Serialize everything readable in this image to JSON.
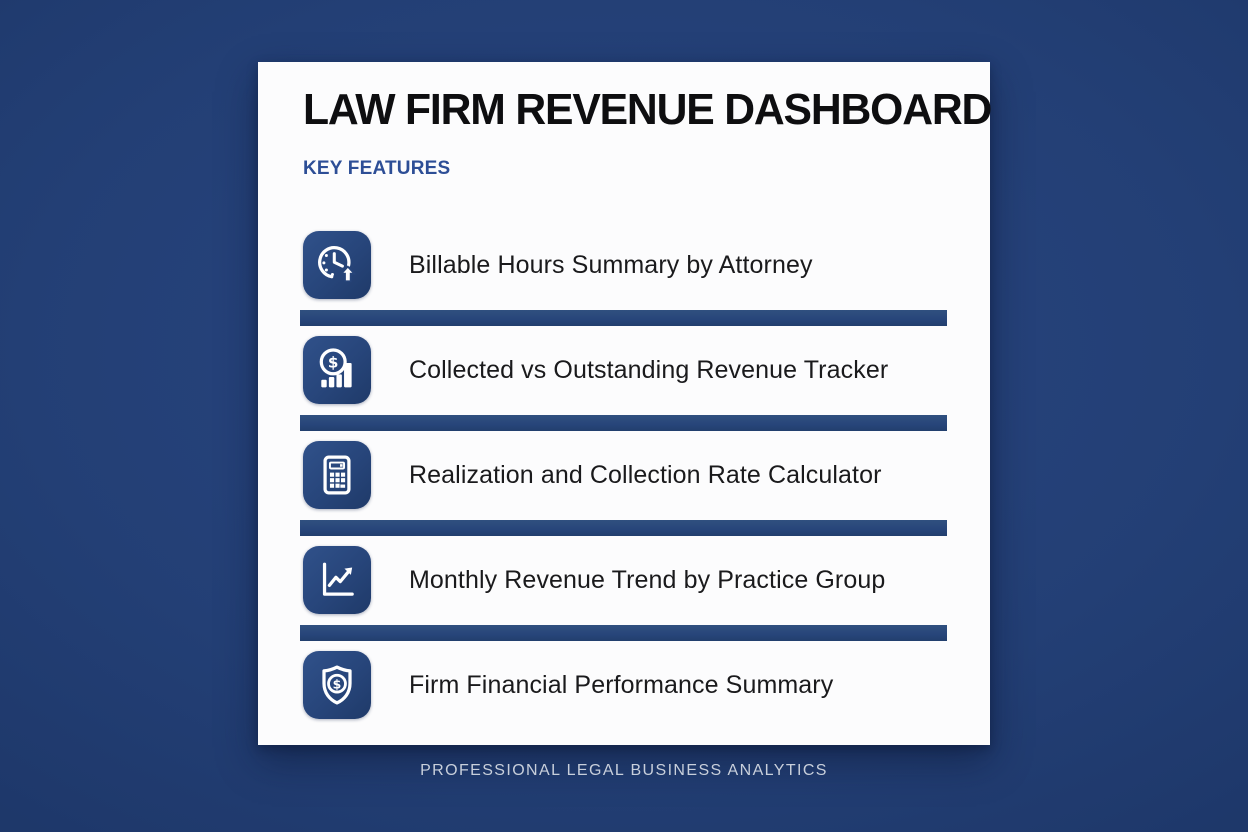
{
  "header": {
    "title": "LAW FIRM REVENUE DASHBOARD",
    "subtitle": "KEY FEATURES"
  },
  "features": [
    {
      "icon": "clock-arrow-up-icon",
      "label": "Billable Hours Summary by Attorney"
    },
    {
      "icon": "dollar-bar-chart-icon",
      "label": "Collected vs Outstanding Revenue Tracker"
    },
    {
      "icon": "calculator-icon",
      "label": "Realization and Collection Rate Calculator"
    },
    {
      "icon": "line-chart-up-icon",
      "label": "Monthly Revenue Trend by Practice Group"
    },
    {
      "icon": "shield-dollar-icon",
      "label": "Firm Financial Performance Summary"
    }
  ],
  "footer": {
    "text": "PROFESSIONAL LEGAL BUSINESS ANALYTICS"
  },
  "colors": {
    "background_navy": "#233f75",
    "card_white": "#fcfcfd",
    "accent_navy": "#27457a",
    "subtitle_blue": "#2d4e96",
    "title_text": "#0e0e10",
    "body_text": "#1a1a1c",
    "footer_text": "#c8cfdb"
  }
}
